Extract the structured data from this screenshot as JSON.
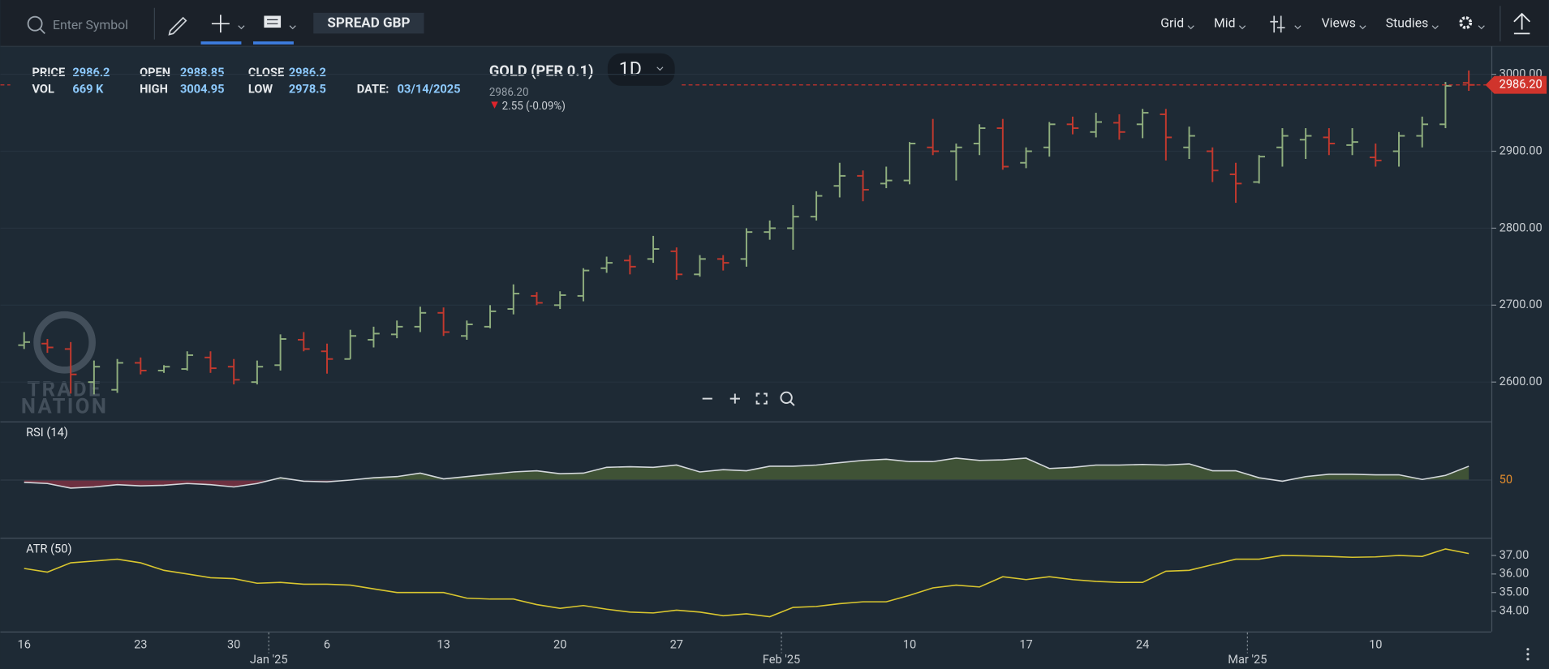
{
  "toolbar": {
    "search_placeholder": "Enter Symbol",
    "account": "SPREAD GBP",
    "menus": [
      "Grid",
      "Mid",
      "Views",
      "Studies"
    ]
  },
  "quote": {
    "fields": [
      {
        "label": "PRICE",
        "value": "2986.2"
      },
      {
        "label": "VOL",
        "value": "669 K"
      },
      {
        "label": "OPEN",
        "value": "2988.85"
      },
      {
        "label": "HIGH",
        "value": "3004.95"
      },
      {
        "label": "CLOSE",
        "value": "2986.2"
      },
      {
        "label": "LOW",
        "value": "2978.5"
      },
      {
        "label": "DATE:",
        "value": "03/14/2025"
      }
    ],
    "symbol": "GOLD (PER 0.1)",
    "interval": "1D",
    "last": "2986.20",
    "change": "2.55 (-0.09%)"
  },
  "watermark": [
    "TRADE",
    "NATION"
  ],
  "chart_data": [
    {
      "type": "ohlc",
      "categories": [
        "16",
        null,
        null,
        null,
        null,
        "23",
        null,
        null,
        null,
        "30",
        null,
        null,
        null,
        "6",
        null,
        null,
        null,
        null,
        "13",
        null,
        null,
        null,
        null,
        "20",
        null,
        null,
        null,
        null,
        "27",
        null,
        null,
        null,
        null,
        null,
        null,
        null,
        null,
        null,
        "10",
        null,
        null,
        null,
        null,
        "17",
        null,
        null,
        null,
        null,
        "24",
        null,
        null,
        null,
        null,
        null,
        null,
        null,
        null,
        null,
        "10",
        null,
        null,
        null,
        null
      ],
      "months": [
        null,
        null,
        null,
        null,
        null,
        null,
        null,
        null,
        null,
        null,
        null,
        "Jan '25",
        null,
        null,
        null,
        null,
        null,
        null,
        null,
        null,
        null,
        null,
        null,
        null,
        null,
        null,
        null,
        null,
        null,
        null,
        null,
        null,
        null,
        "Feb '25",
        null,
        null,
        null,
        null,
        null,
        null,
        null,
        null,
        null,
        null,
        null,
        null,
        null,
        null,
        null,
        null,
        null,
        null,
        null,
        "Mar '25",
        null,
        null,
        null,
        null,
        null,
        null,
        null,
        null,
        null
      ],
      "open": [
        2648,
        2650,
        2643,
        2600,
        2590,
        2625,
        2615,
        2617,
        2632,
        2620,
        2600,
        2622,
        2655,
        2640,
        2630,
        2655,
        2662,
        2672,
        2690,
        2660,
        2672,
        2695,
        2712,
        2700,
        2712,
        2748,
        2758,
        2760,
        2770,
        2740,
        2760,
        2760,
        2795,
        2800,
        2815,
        2855,
        2868,
        2858,
        2862,
        2905,
        2900,
        2910,
        2930,
        2885,
        2905,
        2935,
        2925,
        2937,
        2935,
        2948,
        2905,
        2900,
        2870,
        2860,
        2905,
        2915,
        2918,
        2908,
        2892,
        2900,
        2920,
        2935,
        2988.85
      ],
      "high": [
        2665,
        2656,
        2652,
        2628,
        2630,
        2632,
        2622,
        2640,
        2640,
        2630,
        2628,
        2662,
        2665,
        2650,
        2668,
        2672,
        2680,
        2698,
        2697,
        2680,
        2700,
        2727,
        2717,
        2718,
        2748,
        2763,
        2765,
        2790,
        2775,
        2765,
        2765,
        2800,
        2810,
        2830,
        2848,
        2885,
        2875,
        2880,
        2912,
        2942,
        2910,
        2935,
        2942,
        2905,
        2938,
        2945,
        2950,
        2948,
        2955,
        2955,
        2932,
        2905,
        2885,
        2895,
        2930,
        2930,
        2930,
        2930,
        2910,
        2925,
        2945,
        2990,
        3004.95
      ],
      "low": [
        2643,
        2638,
        2585,
        2584,
        2586,
        2610,
        2612,
        2615,
        2612,
        2597,
        2597,
        2615,
        2640,
        2611,
        2630,
        2645,
        2657,
        2665,
        2660,
        2655,
        2670,
        2688,
        2700,
        2695,
        2705,
        2742,
        2740,
        2755,
        2733,
        2737,
        2745,
        2750,
        2785,
        2772,
        2810,
        2840,
        2835,
        2852,
        2857,
        2895,
        2862,
        2895,
        2876,
        2878,
        2893,
        2922,
        2918,
        2915,
        2917,
        2888,
        2890,
        2860,
        2833,
        2858,
        2880,
        2890,
        2895,
        2895,
        2880,
        2880,
        2905,
        2930,
        2978.5
      ],
      "close": [
        2652,
        2645,
        2610,
        2620,
        2625,
        2615,
        2620,
        2635,
        2618,
        2603,
        2620,
        2656,
        2643,
        2630,
        2660,
        2663,
        2672,
        2690,
        2665,
        2675,
        2692,
        2715,
        2703,
        2713,
        2745,
        2755,
        2750,
        2773,
        2740,
        2760,
        2755,
        2795,
        2800,
        2815,
        2842,
        2868,
        2850,
        2862,
        2910,
        2900,
        2905,
        2930,
        2880,
        2900,
        2935,
        2930,
        2938,
        2925,
        2950,
        2918,
        2920,
        2875,
        2858,
        2893,
        2920,
        2920,
        2910,
        2912,
        2888,
        2920,
        2935,
        2985,
        2986.2
      ],
      "up_color": "#8fae7e",
      "down_color": "#c2392e",
      "ylim": [
        2549,
        3035
      ],
      "yticks": [
        {
          "value": 2600,
          "label": "2600.00"
        },
        {
          "value": 2700,
          "label": "2700.00"
        },
        {
          "value": 2800,
          "label": "2800.00"
        },
        {
          "value": 2900,
          "label": "2900.00"
        },
        {
          "value": 3000,
          "label": "3000.00"
        }
      ],
      "last_price": {
        "value": 2986.2,
        "label": "2986.20"
      },
      "last_color": "#d0342c",
      "grid": true
    },
    {
      "type": "line",
      "title": "RSI (14)",
      "color": "#d4d8dc",
      "fill_above": "#3f5236",
      "fill_below": "#6d3040",
      "values": [
        48,
        47,
        43,
        44,
        46,
        45,
        45.5,
        47,
        46,
        44,
        47,
        52,
        49,
        48.5,
        50,
        52,
        53,
        56,
        51,
        53,
        55,
        57,
        58,
        55.5,
        56,
        61,
        61.5,
        61,
        63,
        57,
        59,
        58,
        62,
        62,
        63,
        65,
        67,
        68,
        66,
        66,
        69,
        67,
        67.5,
        69,
        60,
        61,
        63,
        63,
        63.5,
        63,
        64,
        58,
        58,
        52,
        49,
        53,
        55,
        55,
        54.5,
        54.5,
        50.5,
        54,
        62
      ],
      "ylim": [
        0,
        100
      ],
      "yticks": [
        50
      ]
    },
    {
      "type": "line",
      "title": "ATR (50)",
      "color": "#d9c62f",
      "values": [
        36.3,
        36.1,
        36.6,
        36.7,
        36.8,
        36.6,
        36.2,
        36.0,
        35.8,
        35.75,
        35.5,
        35.55,
        35.45,
        35.45,
        35.4,
        35.2,
        35.0,
        35.0,
        35.0,
        34.7,
        34.65,
        34.65,
        34.35,
        34.15,
        34.3,
        34.1,
        33.95,
        33.9,
        34.05,
        33.95,
        33.75,
        33.85,
        33.7,
        34.2,
        34.25,
        34.4,
        34.5,
        34.5,
        34.85,
        35.25,
        35.4,
        35.3,
        35.85,
        35.7,
        35.85,
        35.7,
        35.6,
        35.55,
        35.55,
        36.15,
        36.2,
        36.5,
        36.8,
        36.8,
        37.0,
        36.98,
        36.95,
        36.9,
        36.92,
        37.0,
        36.95,
        37.35,
        37.1
      ],
      "ylim": [
        32.9,
        37.9
      ],
      "yticks": [
        {
          "value": 34,
          "label": "34.00"
        },
        {
          "value": 35,
          "label": "35.00"
        },
        {
          "value": 36,
          "label": "36.00"
        },
        {
          "value": 37,
          "label": "37.00"
        }
      ]
    }
  ]
}
